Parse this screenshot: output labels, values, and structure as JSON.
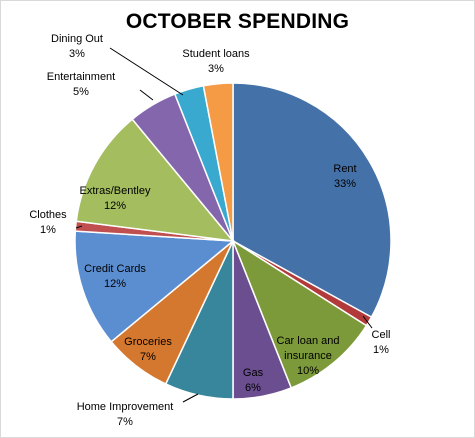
{
  "chart_data": {
    "type": "pie",
    "title": "OCTOBER SPENDING",
    "start_angle_deg": 0,
    "slices": [
      {
        "label": "Rent",
        "value": 33,
        "pct_label": "33%",
        "color": "#4471a8"
      },
      {
        "label": "Cell",
        "value": 1,
        "pct_label": "1%",
        "color": "#b23a3a"
      },
      {
        "label": "Car loan and insurance",
        "value": 10,
        "pct_label": "10%",
        "color": "#7c9a3a"
      },
      {
        "label": "Gas",
        "value": 6,
        "pct_label": "6%",
        "color": "#6b4e8f"
      },
      {
        "label": "Home Improvement",
        "value": 7,
        "pct_label": "7%",
        "color": "#37869c"
      },
      {
        "label": "Groceries",
        "value": 7,
        "pct_label": "7%",
        "color": "#d5782f"
      },
      {
        "label": "Credit Cards",
        "value": 12,
        "pct_label": "12%",
        "color": "#5b8ed0"
      },
      {
        "label": "Clothes",
        "value": 1,
        "pct_label": "1%",
        "color": "#c05050"
      },
      {
        "label": "Extras/Bentley",
        "value": 12,
        "pct_label": "12%",
        "color": "#a3bd5f"
      },
      {
        "label": "Entertainment",
        "value": 5,
        "pct_label": "5%",
        "color": "#8466ad"
      },
      {
        "label": "Dining Out",
        "value": 3,
        "pct_label": "3%",
        "color": "#3aa9cf"
      },
      {
        "label": "Student loans",
        "value": 3,
        "pct_label": "3%",
        "color": "#f59a45"
      }
    ],
    "legend": "none"
  }
}
